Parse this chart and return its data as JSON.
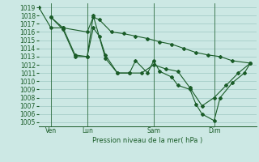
{
  "xlabel": "Pression niveau de la mer( hPa )",
  "ylim": [
    1004.5,
    1019.5
  ],
  "yticks": [
    1005,
    1006,
    1007,
    1008,
    1009,
    1010,
    1011,
    1012,
    1013,
    1014,
    1015,
    1016,
    1017,
    1018,
    1019
  ],
  "xlim": [
    0,
    18.0
  ],
  "xtick_labels": [
    "Ven",
    "Lun",
    "Sam",
    "Dim"
  ],
  "xtick_positions": [
    1.0,
    4.0,
    9.5,
    14.5
  ],
  "vlines": [
    1.0,
    4.0,
    9.5,
    14.5
  ],
  "bg_color": "#cce8e4",
  "grid_color": "#9dc8c2",
  "line_color": "#1a5c28",
  "series1_x": [
    0.0,
    1.0,
    2.0,
    4.0,
    4.5,
    5.0,
    6.0,
    7.0,
    8.0,
    9.0,
    10.0,
    11.0,
    12.0,
    13.0,
    14.0,
    15.0,
    16.0,
    17.5
  ],
  "series1_y": [
    1019.0,
    1016.5,
    1016.5,
    1016.0,
    1017.8,
    1017.5,
    1016.0,
    1015.8,
    1015.5,
    1015.2,
    1014.8,
    1014.5,
    1014.0,
    1013.5,
    1013.2,
    1013.0,
    1012.5,
    1012.2
  ],
  "series2_x": [
    1.0,
    2.0,
    3.0,
    4.0,
    4.5,
    5.5,
    6.5,
    7.5,
    8.5,
    9.5,
    10.5,
    11.5,
    12.5,
    13.5,
    14.5,
    15.5,
    16.5,
    17.5
  ],
  "series2_y": [
    1017.8,
    1016.5,
    1013.2,
    1013.0,
    1018.0,
    1012.8,
    1011.0,
    1011.0,
    1011.0,
    1012.0,
    1011.5,
    1011.2,
    1009.2,
    1007.0,
    1008.0,
    1009.5,
    1011.0,
    1012.2
  ],
  "series3_x": [
    1.0,
    2.0,
    3.0,
    4.0,
    4.5,
    5.0,
    5.5,
    6.5,
    7.5,
    8.0,
    9.0,
    9.5,
    10.0,
    11.0,
    11.5,
    12.5,
    13.0,
    13.5,
    14.5,
    15.0,
    16.0,
    17.0,
    17.5
  ],
  "series3_y": [
    1017.8,
    1016.3,
    1013.0,
    1013.0,
    1016.5,
    1015.5,
    1013.2,
    1011.0,
    1011.0,
    1012.5,
    1011.0,
    1012.5,
    1011.2,
    1010.5,
    1009.5,
    1009.0,
    1007.2,
    1006.0,
    1005.2,
    1008.0,
    1009.8,
    1011.0,
    1012.2
  ],
  "marker": "D",
  "marker_size": 2.0,
  "linewidth": 0.8,
  "figsize": [
    3.2,
    2.0
  ],
  "dpi": 100
}
